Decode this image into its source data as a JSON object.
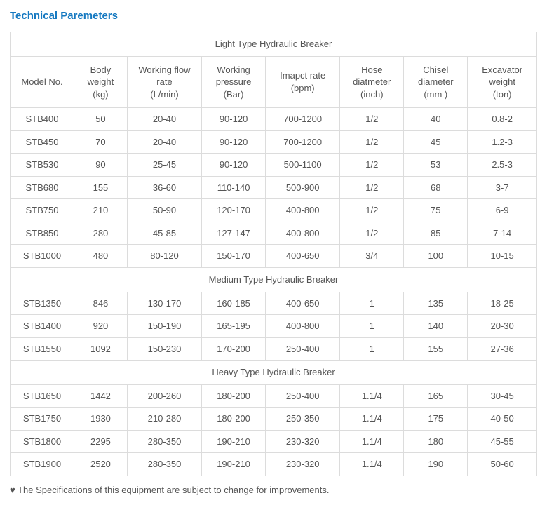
{
  "heading": "Technical Paremeters",
  "columns": [
    "Model No.",
    "Body weight (kg)",
    "Working flow rate (L/min)",
    "Working pressure (Bar)",
    "Imapct rate (bpm)",
    "Hose diatmeter (inch)",
    "Chisel diameter (mm )",
    "Excavator weight (ton)"
  ],
  "sections": [
    {
      "title": "Light Type Hydraulic Breaker",
      "rows": [
        [
          "STB400",
          "50",
          "20-40",
          "90-120",
          "700-1200",
          "1/2",
          "40",
          "0.8-2"
        ],
        [
          "STB450",
          "70",
          "20-40",
          "90-120",
          "700-1200",
          "1/2",
          "45",
          "1.2-3"
        ],
        [
          "STB530",
          "90",
          "25-45",
          "90-120",
          "500-1100",
          "1/2",
          "53",
          "2.5-3"
        ],
        [
          "STB680",
          "155",
          "36-60",
          "110-140",
          "500-900",
          "1/2",
          "68",
          "3-7"
        ],
        [
          "STB750",
          "210",
          "50-90",
          "120-170",
          "400-800",
          "1/2",
          "75",
          "6-9"
        ],
        [
          "STB850",
          "280",
          "45-85",
          "127-147",
          "400-800",
          "1/2",
          "85",
          "7-14"
        ],
        [
          "STB1000",
          "480",
          "80-120",
          "150-170",
          "400-650",
          "3/4",
          "100",
          "10-15"
        ]
      ]
    },
    {
      "title": "Medium Type Hydraulic Breaker",
      "rows": [
        [
          "STB1350",
          "846",
          "130-170",
          "160-185",
          "400-650",
          "1",
          "135",
          "18-25"
        ],
        [
          "STB1400",
          "920",
          "150-190",
          "165-195",
          "400-800",
          "1",
          "140",
          "20-30"
        ],
        [
          "STB1550",
          "1092",
          "150-230",
          "170-200",
          "250-400",
          "1",
          "155",
          "27-36"
        ]
      ]
    },
    {
      "title": "Heavy Type Hydraulic Breaker",
      "rows": [
        [
          "STB1650",
          "1442",
          "200-260",
          "180-200",
          "250-400",
          "1.1/4",
          "165",
          "30-45"
        ],
        [
          "STB1750",
          "1930",
          "210-280",
          "180-200",
          "250-350",
          "1.1/4",
          "175",
          "40-50"
        ],
        [
          "STB1800",
          "2295",
          "280-350",
          "190-210",
          "230-320",
          "1.1/4",
          "180",
          "45-55"
        ],
        [
          "STB1900",
          "2520",
          "280-350",
          "190-210",
          "230-320",
          "1.1/4",
          "190",
          "50-60"
        ]
      ]
    }
  ],
  "footnote": "♥ The Specifications of this equipment are subject to change for improvements.",
  "colors": {
    "heading": "#1579c1",
    "border": "#dcdcdc",
    "text": "#555555",
    "background": "#ffffff"
  }
}
